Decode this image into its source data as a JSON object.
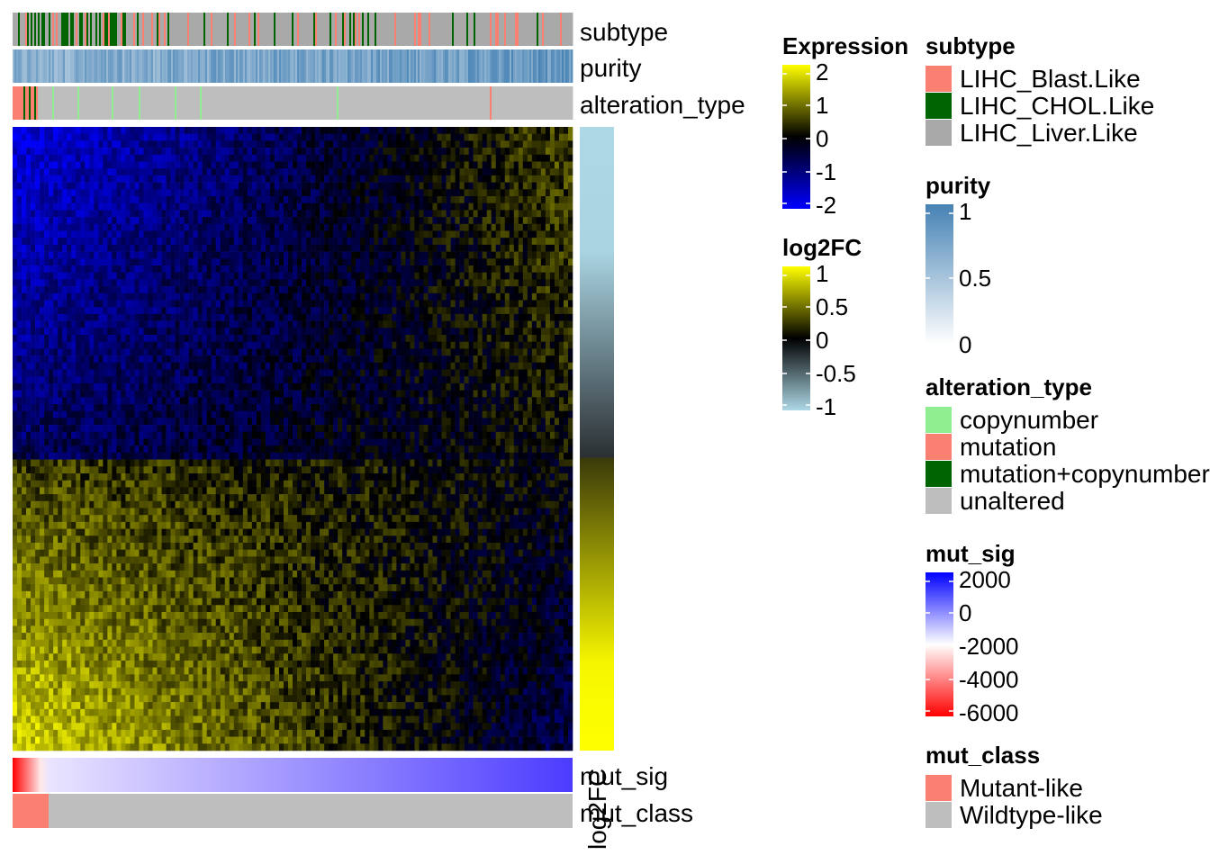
{
  "chart_data": {
    "type": "heatmap",
    "top_annotations": [
      {
        "name": "subtype",
        "kind": "categorical"
      },
      {
        "name": "purity",
        "kind": "continuous"
      },
      {
        "name": "alteration_type",
        "kind": "categorical"
      }
    ],
    "bottom_annotations": [
      {
        "name": "mut_sig",
        "kind": "continuous",
        "trend": "increasing from ~-6000 (left, red) to ~2000 (right, blue)"
      },
      {
        "name": "mut_class",
        "kind": "categorical",
        "left_segment": "Mutant-like",
        "rest": "Wildtype-like",
        "mutant_fraction": 0.065
      }
    ],
    "row_annotation": {
      "name": "log2FC",
      "upper_fraction": 0.53,
      "upper_range": [
        -1,
        -0.35
      ],
      "lower_range": [
        0.35,
        1
      ]
    },
    "legends": [
      {
        "title": "Expression",
        "type": "continuous",
        "ticks": [
          "2",
          "1",
          "0",
          "-1",
          "-2"
        ],
        "colors": [
          "#ffff00",
          "#000000",
          "#0000ff"
        ]
      },
      {
        "title": "log2FC",
        "type": "continuous",
        "ticks": [
          "1",
          "0.5",
          "0",
          "-0.5",
          "-1"
        ],
        "colors": [
          "#ffff00",
          "#000000",
          "#add8e6"
        ]
      },
      {
        "title": "subtype",
        "type": "categorical",
        "items": [
          {
            "label": "LIHC_Blast.Like",
            "color": "#fa8072"
          },
          {
            "label": "LIHC_CHOL.Like",
            "color": "#006400"
          },
          {
            "label": "LIHC_Liver.Like",
            "color": "#a9a9a9"
          }
        ]
      },
      {
        "title": "purity",
        "type": "continuous",
        "ticks": [
          "1",
          "0.5",
          "0"
        ],
        "colors": [
          "#4682b4",
          "#ffffff"
        ]
      },
      {
        "title": "alteration_type",
        "type": "categorical",
        "items": [
          {
            "label": "copynumber",
            "color": "#90ee90"
          },
          {
            "label": "mutation",
            "color": "#fa8072"
          },
          {
            "label": "mutation+copynumber",
            "color": "#006400"
          },
          {
            "label": "unaltered",
            "color": "#bebebe"
          }
        ]
      },
      {
        "title": "mut_sig",
        "type": "continuous",
        "ticks": [
          "2000",
          "0",
          "-2000",
          "-4000",
          "-6000"
        ],
        "colors": [
          "#0000ff",
          "#ffffff",
          "#ff0000"
        ]
      },
      {
        "title": "mut_class",
        "type": "categorical",
        "items": [
          {
            "label": "Mutant-like",
            "color": "#fa8072"
          },
          {
            "label": "Wildtype-like",
            "color": "#bebebe"
          }
        ]
      }
    ]
  }
}
